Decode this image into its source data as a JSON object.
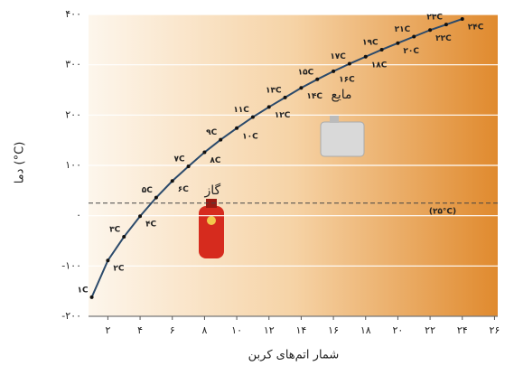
{
  "chart_data": {
    "type": "line",
    "y_label": "دما (°C)",
    "x_label": "شمار اتم‌های کربن",
    "x": [
      1,
      2,
      3,
      4,
      5,
      6,
      7,
      8,
      9,
      10,
      11,
      12,
      13,
      14,
      15,
      16,
      17,
      18,
      19,
      20,
      21,
      22,
      23,
      24
    ],
    "series": [
      {
        "color": "#2b4a6b",
        "values": [
          -162,
          -89,
          -42,
          -1,
          36,
          69,
          98,
          126,
          151,
          174,
          196,
          216,
          235,
          254,
          271,
          287,
          302,
          316,
          330,
          343,
          356,
          369,
          380,
          391
        ],
        "value_labels": [
          "۱C",
          "۲C",
          "۳C",
          "۴C",
          "۵C",
          "۶C",
          "۷C",
          "۸C",
          "۹C",
          "۱۰C",
          "۱۱C",
          "۱۲C",
          "۱۳C",
          "۱۴C",
          "۱۵C",
          "۱۶C",
          "۱۷C",
          "۱۸C",
          "۱۹C",
          "۲۰C",
          "۲۱C",
          "۲۲C",
          "۲۳C",
          "۲۴C"
        ]
      }
    ],
    "xlim": [
      0.8,
      26.2
    ],
    "ylim": [
      -200,
      400
    ],
    "xticks": [
      {
        "value": 2,
        "label": "۲"
      },
      {
        "value": 4,
        "label": "۴"
      },
      {
        "value": 6,
        "label": "۶"
      },
      {
        "value": 8,
        "label": "۸"
      },
      {
        "value": 10,
        "label": "۱۰"
      },
      {
        "value": 12,
        "label": "۱۲"
      },
      {
        "value": 14,
        "label": "۱۴"
      },
      {
        "value": 16,
        "label": "۱۶"
      },
      {
        "value": 18,
        "label": "۱۸"
      },
      {
        "value": 20,
        "label": "۲۰"
      },
      {
        "value": 22,
        "label": "۲۲"
      },
      {
        "value": 24,
        "label": "۲۴"
      },
      {
        "value": 26,
        "label": "۲۶"
      }
    ],
    "yticks": [
      {
        "value": -200,
        "label": "-۲۰۰"
      },
      {
        "value": -100,
        "label": "-۱۰۰"
      },
      {
        "value": 0,
        "label": "۰"
      },
      {
        "value": 100,
        "label": "۱۰۰"
      },
      {
        "value": 200,
        "label": "۲۰۰"
      },
      {
        "value": 300,
        "label": "۳۰۰"
      },
      {
        "value": 400,
        "label": "۴۰۰"
      }
    ],
    "reference_line": {
      "value": 25,
      "label": "(۲۵°C)"
    },
    "annotations": [
      {
        "text": "گاز",
        "x": 8.5,
        "y": 50
      },
      {
        "text": "مایع",
        "x": 16.5,
        "y": 240
      }
    ],
    "grid": true
  }
}
